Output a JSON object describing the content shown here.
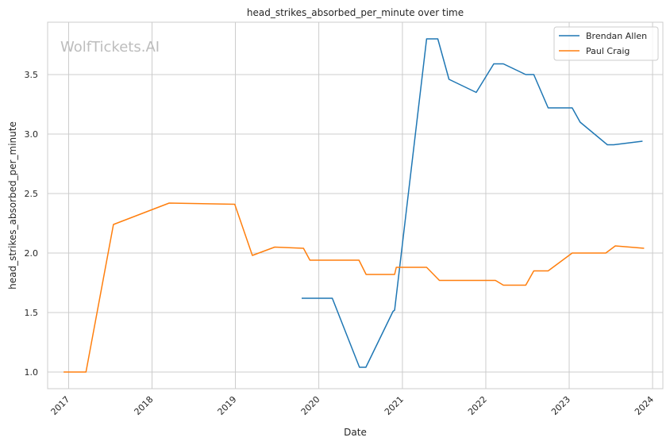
{
  "chart_data": {
    "type": "line",
    "title": "head_strikes_absorbed_per_minute over time",
    "xlabel": "Date",
    "ylabel": "head_strikes_absorbed_per_minute",
    "watermark": "WolfTickets.AI",
    "x_ticks": [
      "2017",
      "2018",
      "2019",
      "2020",
      "2021",
      "2022",
      "2023",
      "2024"
    ],
    "y_ticks": [
      "1.0",
      "1.5",
      "2.0",
      "2.5",
      "3.0",
      "3.5"
    ],
    "xlim": [
      "2016-10-01",
      "2024-02-15"
    ],
    "ylim": [
      0.86,
      3.94
    ],
    "grid": true,
    "legend_position": "top-right",
    "series": [
      {
        "name": "Brendan Allen",
        "color": "#1f77b4",
        "points": [
          [
            "2019-10-18",
            1.62
          ],
          [
            "2020-02-29",
            1.62
          ],
          [
            "2020-06-27",
            1.04
          ],
          [
            "2020-07-25",
            1.04
          ],
          [
            "2020-11-21",
            1.51
          ],
          [
            "2020-11-28",
            1.52
          ],
          [
            "2021-04-17",
            3.8
          ],
          [
            "2021-06-05",
            3.8
          ],
          [
            "2021-07-24",
            3.46
          ],
          [
            "2021-11-20",
            3.35
          ],
          [
            "2022-02-05",
            3.59
          ],
          [
            "2022-03-19",
            3.59
          ],
          [
            "2022-06-25",
            3.5
          ],
          [
            "2022-07-30",
            3.5
          ],
          [
            "2022-10-01",
            3.22
          ],
          [
            "2023-01-14",
            3.22
          ],
          [
            "2023-02-18",
            3.1
          ],
          [
            "2023-06-17",
            2.91
          ],
          [
            "2023-07-15",
            2.91
          ],
          [
            "2023-11-18",
            2.94
          ]
        ]
      },
      {
        "name": "Paul Craig",
        "color": "#ff7f0e",
        "points": [
          [
            "2016-12-10",
            1.0
          ],
          [
            "2017-03-18",
            1.0
          ],
          [
            "2017-07-16",
            2.24
          ],
          [
            "2018-03-17",
            2.42
          ],
          [
            "2018-12-29",
            2.41
          ],
          [
            "2019-03-16",
            1.98
          ],
          [
            "2019-06-22",
            2.05
          ],
          [
            "2019-10-26",
            2.04
          ],
          [
            "2019-11-23",
            1.94
          ],
          [
            "2020-06-25",
            1.94
          ],
          [
            "2020-07-26",
            1.82
          ],
          [
            "2020-11-28",
            1.82
          ],
          [
            "2020-12-05",
            1.88
          ],
          [
            "2021-04-17",
            1.88
          ],
          [
            "2021-06-12",
            1.77
          ],
          [
            "2022-02-12",
            1.77
          ],
          [
            "2022-03-19",
            1.73
          ],
          [
            "2022-06-25",
            1.73
          ],
          [
            "2022-07-30",
            1.85
          ],
          [
            "2022-10-01",
            1.85
          ],
          [
            "2023-01-14",
            2.0
          ],
          [
            "2023-06-10",
            2.0
          ],
          [
            "2023-07-22",
            2.06
          ],
          [
            "2023-11-25",
            2.04
          ]
        ]
      }
    ]
  }
}
